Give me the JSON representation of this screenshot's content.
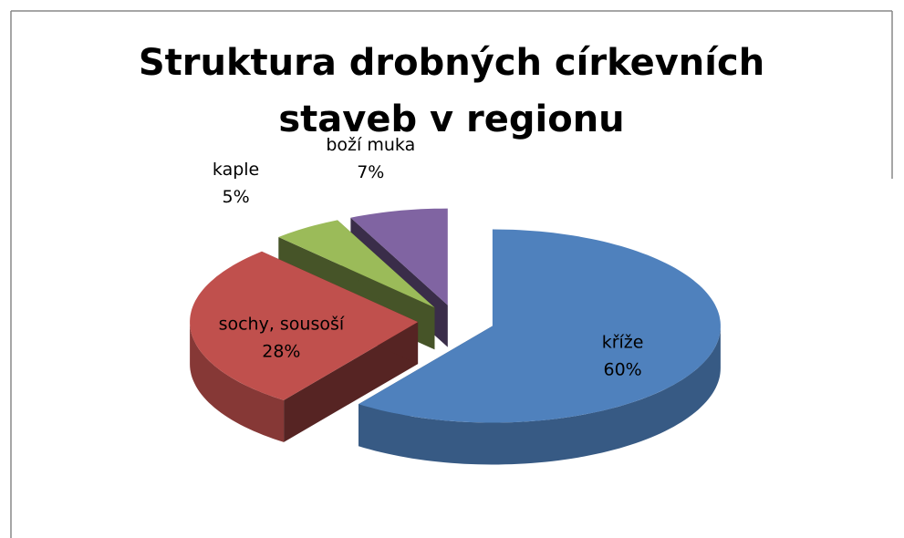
{
  "chart_data": {
    "type": "pie",
    "title": "Struktura drobných církevních staveb v regionu",
    "categories": [
      "kříže",
      "sochy, sousoší",
      "kaple",
      "boží muka"
    ],
    "values": [
      60,
      28,
      5,
      7
    ],
    "value_labels": [
      "60%",
      "28%",
      "5%",
      "7%"
    ],
    "colors": [
      "#4f81bd",
      "#c0504d",
      "#9bbb59",
      "#8064a2"
    ]
  }
}
